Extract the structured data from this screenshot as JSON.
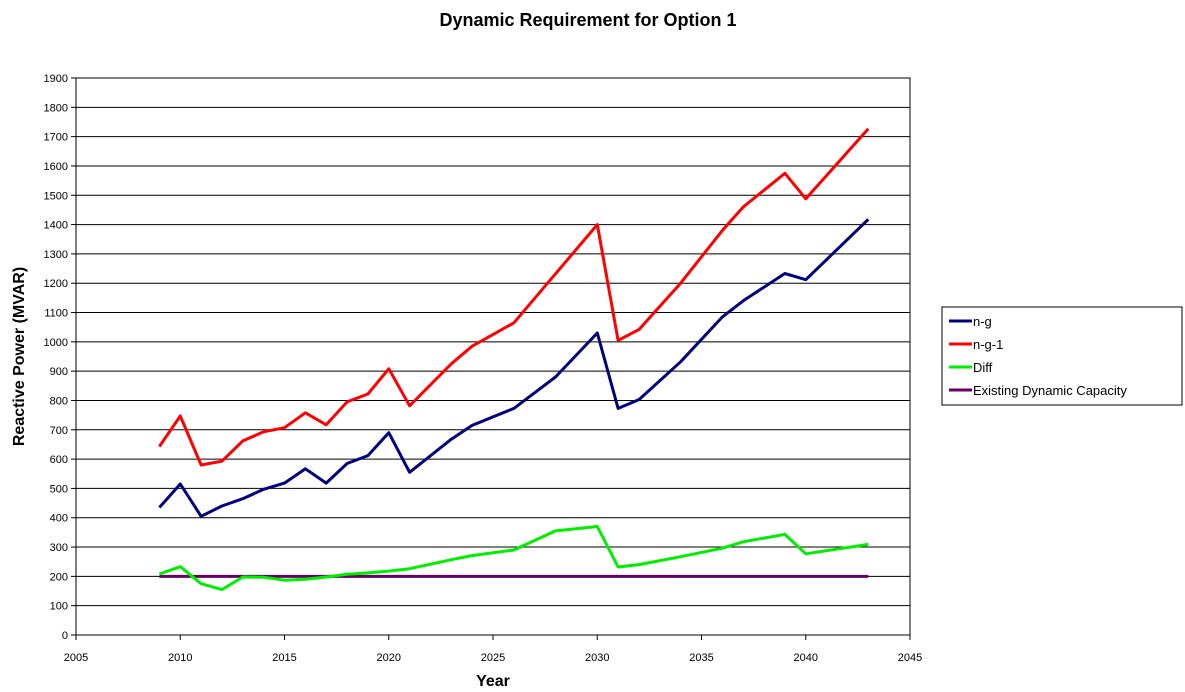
{
  "chart_data": {
    "type": "line",
    "title": "Dynamic Requirement for Option 1",
    "xlabel": "Year",
    "ylabel": "Reactive Power (MVAR)",
    "xlim": [
      2005,
      2045
    ],
    "ylim": [
      0,
      1900
    ],
    "xticks": [
      2005,
      2010,
      2015,
      2020,
      2025,
      2030,
      2035,
      2040,
      2045
    ],
    "yticks": [
      0,
      100,
      200,
      300,
      400,
      500,
      600,
      700,
      800,
      900,
      1000,
      1100,
      1200,
      1300,
      1400,
      1500,
      1600,
      1700,
      1800,
      1900
    ],
    "grid": "horizontal",
    "legend_position": "right",
    "series": [
      {
        "name": "n-g",
        "color": "#000080",
        "x": [
          2009,
          2010,
          2011,
          2012,
          2013,
          2014,
          2015,
          2016,
          2017,
          2018,
          2019,
          2020,
          2021,
          2023,
          2024,
          2026,
          2028,
          2030,
          2031,
          2032,
          2034,
          2036,
          2037,
          2039,
          2040,
          2043
        ],
        "y": [
          435,
          515,
          405,
          440,
          465,
          497,
          518,
          567,
          518,
          585,
          612,
          690,
          555,
          668,
          715,
          773,
          880,
          1030,
          773,
          803,
          932,
          1085,
          1140,
          1233,
          1212,
          1418
        ]
      },
      {
        "name": "n-g-1",
        "color": "#ff0000",
        "x": [
          2009,
          2010,
          2011,
          2012,
          2013,
          2014,
          2015,
          2016,
          2017,
          2018,
          2019,
          2020,
          2021,
          2023,
          2024,
          2026,
          2028,
          2030,
          2031,
          2032,
          2034,
          2036,
          2037,
          2039,
          2040,
          2043
        ],
        "y": [
          643,
          747,
          580,
          593,
          662,
          693,
          707,
          758,
          717,
          795,
          822,
          908,
          782,
          925,
          985,
          1065,
          1232,
          1400,
          1005,
          1042,
          1200,
          1380,
          1460,
          1575,
          1488,
          1727
        ]
      },
      {
        "name": "Diff",
        "color": "#00ee00",
        "x": [
          2009,
          2010,
          2011,
          2012,
          2013,
          2014,
          2015,
          2016,
          2017,
          2018,
          2019,
          2020,
          2021,
          2023,
          2024,
          2026,
          2028,
          2030,
          2031,
          2032,
          2034,
          2036,
          2037,
          2039,
          2040,
          2043
        ],
        "y": [
          208,
          233,
          175,
          155,
          198,
          197,
          187,
          190,
          198,
          207,
          212,
          218,
          226,
          257,
          271,
          290,
          355,
          370,
          232,
          240,
          267,
          296,
          318,
          343,
          277,
          309
        ]
      },
      {
        "name": "Existing Dynamic Capacity",
        "color": "#660066",
        "x": [
          2009,
          2043
        ],
        "y": [
          200,
          200
        ]
      }
    ]
  }
}
